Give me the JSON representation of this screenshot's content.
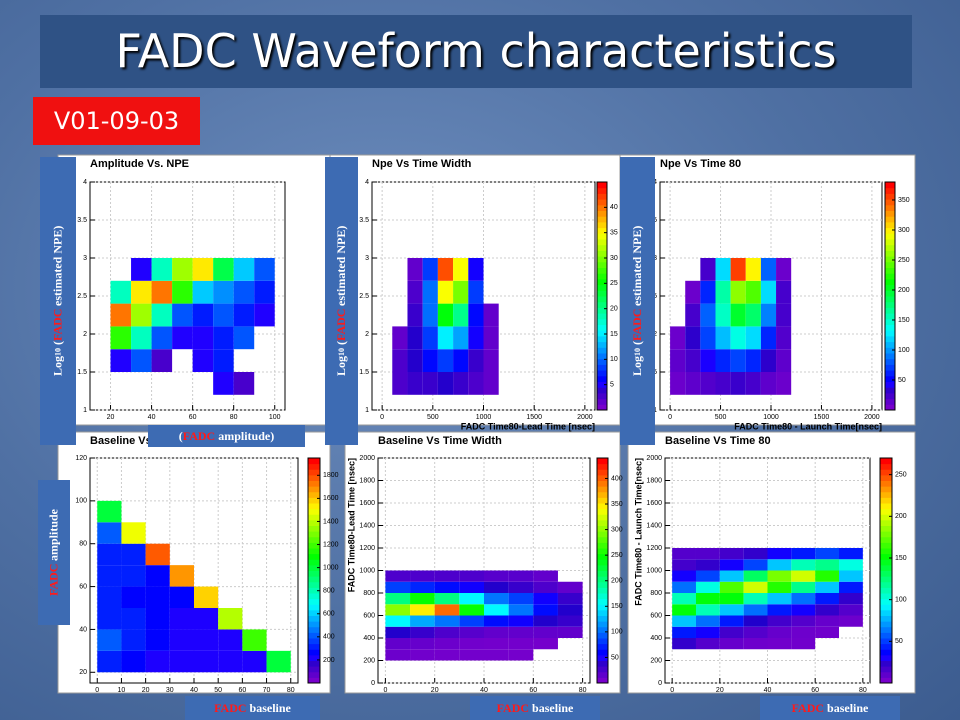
{
  "slide": {
    "title": "FADC Waveform characteristics",
    "version": "V01-09-03"
  },
  "chart_data": [
    {
      "type": "heatmap",
      "title": "Amplitude Vs. NPE",
      "xlim": [
        10,
        105
      ],
      "xticks": [
        20,
        40,
        60,
        80,
        100
      ],
      "ylim": [
        1,
        4
      ],
      "yticks": [
        1,
        1.5,
        2,
        2.5,
        3,
        3.5,
        4
      ],
      "x_edges": [
        20,
        30,
        40,
        50,
        60,
        70,
        80,
        90,
        100
      ],
      "y_edges": [
        1.2,
        1.5,
        1.8,
        2.1,
        2.4,
        2.7,
        3.0
      ],
      "zlim": [
        0,
        100
      ],
      "grid": true,
      "z": [
        [
          0,
          0,
          0,
          0,
          0,
          10,
          5,
          0
        ],
        [
          10,
          20,
          5,
          0,
          10,
          15,
          0,
          0
        ],
        [
          60,
          40,
          20,
          10,
          10,
          15,
          20,
          0
        ],
        [
          90,
          70,
          40,
          20,
          15,
          20,
          15,
          10
        ],
        [
          40,
          80,
          90,
          60,
          30,
          25,
          20,
          15
        ],
        [
          0,
          10,
          40,
          70,
          80,
          50,
          30,
          20
        ]
      ]
    },
    {
      "type": "heatmap",
      "title": "Npe Vs Time Width",
      "xlabel": "FADC Time80-Lead Time [nsec]",
      "xlim": [
        -100,
        2100
      ],
      "xticks": [
        0,
        500,
        1000,
        1500,
        2000
      ],
      "ylim": [
        1,
        4
      ],
      "yticks": [
        1,
        1.5,
        2,
        2.5,
        3,
        3.5,
        4
      ],
      "x_edges": [
        100,
        250,
        400,
        550,
        700,
        850,
        1000,
        1150
      ],
      "y_edges": [
        1.2,
        1.5,
        1.8,
        2.1,
        2.4,
        2.7,
        3.0
      ],
      "zlim": [
        0,
        45
      ],
      "zticks": [
        5,
        10,
        15,
        20,
        25,
        30,
        35,
        40
      ],
      "grid": true,
      "z": [
        [
          2,
          3,
          3,
          4,
          3,
          2,
          1
        ],
        [
          2,
          4,
          6,
          8,
          6,
          3,
          1
        ],
        [
          1,
          4,
          8,
          15,
          12,
          5,
          1
        ],
        [
          0,
          3,
          10,
          25,
          20,
          6,
          1
        ],
        [
          0,
          2,
          10,
          35,
          30,
          8,
          0
        ],
        [
          0,
          1,
          8,
          42,
          35,
          5,
          0
        ]
      ]
    },
    {
      "type": "heatmap",
      "title": "Npe Vs Time 80",
      "xlabel": "FADC Time80 - Launch Time[nsec]",
      "xlim": [
        -100,
        2100
      ],
      "xticks": [
        0,
        500,
        1000,
        1500,
        2000
      ],
      "ylim": [
        1,
        4
      ],
      "yticks": [
        1,
        1.5,
        2,
        2.5,
        3,
        3.5,
        4
      ],
      "x_edges": [
        0,
        150,
        300,
        450,
        600,
        750,
        900,
        1050,
        1200
      ],
      "y_edges": [
        1.2,
        1.5,
        1.8,
        2.1,
        2.4,
        2.7,
        3.0
      ],
      "zlim": [
        0,
        380
      ],
      "zticks": [
        50,
        100,
        150,
        200,
        250,
        300,
        350
      ],
      "grid": true,
      "z": [
        [
          5,
          10,
          15,
          20,
          25,
          20,
          10,
          5
        ],
        [
          10,
          20,
          40,
          60,
          70,
          60,
          30,
          10
        ],
        [
          5,
          30,
          70,
          110,
          140,
          120,
          60,
          15
        ],
        [
          0,
          20,
          80,
          150,
          200,
          180,
          90,
          20
        ],
        [
          0,
          5,
          60,
          160,
          260,
          240,
          120,
          20
        ],
        [
          0,
          0,
          20,
          120,
          360,
          300,
          80,
          5
        ]
      ]
    },
    {
      "type": "heatmap",
      "title": "Baseline Vs",
      "xlim": [
        -3,
        83
      ],
      "xticks": [
        0,
        10,
        20,
        30,
        40,
        50,
        60,
        70,
        80
      ],
      "ylim": [
        15,
        120
      ],
      "yticks": [
        20,
        40,
        60,
        80,
        100,
        120
      ],
      "x_edges": [
        0,
        10,
        20,
        30,
        40,
        50,
        60,
        70,
        80
      ],
      "y_edges": [
        20,
        30,
        40,
        50,
        60,
        70,
        80,
        90,
        100
      ],
      "zlim": [
        0,
        1950
      ],
      "zticks": [
        200,
        400,
        600,
        800,
        1000,
        1200,
        1400,
        1600,
        1800
      ],
      "grid": true,
      "z": [
        [
          300,
          250,
          200,
          200,
          200,
          200,
          200,
          1000
        ],
        [
          400,
          300,
          250,
          200,
          200,
          200,
          1200,
          0
        ],
        [
          300,
          300,
          250,
          200,
          200,
          1400,
          0,
          0
        ],
        [
          300,
          250,
          250,
          250,
          1600,
          0,
          0,
          0
        ],
        [
          300,
          300,
          250,
          1700,
          0,
          0,
          0,
          0
        ],
        [
          300,
          300,
          1800,
          0,
          0,
          0,
          0,
          0
        ],
        [
          400,
          1500,
          0,
          0,
          0,
          0,
          0,
          0
        ],
        [
          1000,
          0,
          0,
          0,
          0,
          0,
          0,
          0
        ]
      ]
    },
    {
      "type": "heatmap",
      "title": "Baseline Vs Time Width",
      "ylabel": "FADC Time80-Lead Time [nsec]",
      "xlim": [
        -3,
        83
      ],
      "xticks": [
        0,
        20,
        40,
        60,
        80
      ],
      "ylim": [
        0,
        2000
      ],
      "yticks": [
        0,
        200,
        400,
        600,
        800,
        1000,
        1200,
        1400,
        1600,
        1800,
        2000
      ],
      "x_edges": [
        0,
        10,
        20,
        30,
        40,
        50,
        60,
        70,
        80
      ],
      "y_edges": [
        200,
        300,
        400,
        500,
        600,
        700,
        800,
        900,
        1000
      ],
      "zlim": [
        0,
        440
      ],
      "zticks": [
        50,
        100,
        150,
        200,
        250,
        300,
        350,
        400
      ],
      "grid": true,
      "z": [
        [
          5,
          3,
          2,
          2,
          2,
          1,
          0,
          0
        ],
        [
          10,
          8,
          5,
          3,
          2,
          2,
          1,
          0
        ],
        [
          40,
          30,
          20,
          15,
          10,
          10,
          10,
          10
        ],
        [
          150,
          120,
          100,
          80,
          60,
          50,
          40,
          30
        ],
        [
          300,
          350,
          400,
          250,
          150,
          100,
          60,
          40
        ],
        [
          200,
          250,
          200,
          150,
          100,
          80,
          50,
          30
        ],
        [
          80,
          70,
          60,
          50,
          40,
          30,
          20,
          10
        ],
        [
          20,
          20,
          20,
          20,
          15,
          15,
          10,
          0
        ]
      ]
    },
    {
      "type": "heatmap",
      "title": "Baseline Vs Time 80",
      "ylabel": "FADC Time80 - Launch Time[nsec]",
      "xlim": [
        -3,
        83
      ],
      "xticks": [
        0,
        20,
        40,
        60,
        80
      ],
      "ylim": [
        0,
        2000
      ],
      "yticks": [
        0,
        200,
        400,
        600,
        800,
        1000,
        1200,
        1400,
        1600,
        1800,
        2000
      ],
      "x_edges": [
        0,
        10,
        20,
        30,
        40,
        50,
        60,
        70,
        80
      ],
      "y_edges": [
        300,
        400,
        500,
        600,
        700,
        800,
        900,
        1000,
        1100,
        1200
      ],
      "zlim": [
        0,
        270
      ],
      "zticks": [
        50,
        100,
        150,
        200,
        250
      ],
      "grid": true,
      "z": [
        [
          20,
          10,
          5,
          3,
          2,
          2,
          0,
          0
        ],
        [
          40,
          30,
          15,
          10,
          5,
          3,
          2,
          0
        ],
        [
          80,
          60,
          40,
          25,
          15,
          10,
          5,
          3
        ],
        [
          150,
          110,
          80,
          60,
          40,
          30,
          20,
          10
        ],
        [
          110,
          150,
          150,
          110,
          80,
          60,
          40,
          20
        ],
        [
          60,
          100,
          170,
          200,
          160,
          120,
          80,
          40
        ],
        [
          30,
          50,
          80,
          130,
          180,
          200,
          160,
          80
        ],
        [
          15,
          20,
          30,
          50,
          80,
          110,
          120,
          100
        ],
        [
          10,
          10,
          15,
          20,
          30,
          40,
          50,
          40
        ]
      ]
    }
  ],
  "overlays": [
    {
      "before": "Log",
      "sub": "10",
      "mid": " (",
      "red": "FADC",
      "after": " estimated NPE)"
    },
    {
      "before": "Log",
      "sub": "10",
      "mid": " (",
      "red": "FADC",
      "after": " estimated NPE)"
    },
    {
      "before": "Log",
      "sub": "10",
      "mid": " (",
      "red": "FADC",
      "after": " estimated NPE)"
    },
    {
      "before": "(",
      "red": "FADC",
      "after": " amplitude)"
    },
    {
      "red": "FADC",
      "after": " amplitude"
    },
    {
      "red": "FADC",
      "after": " baseline"
    },
    {
      "red": "FADC",
      "after": " baseline"
    },
    {
      "red": "FADC",
      "after": " baseline"
    }
  ]
}
